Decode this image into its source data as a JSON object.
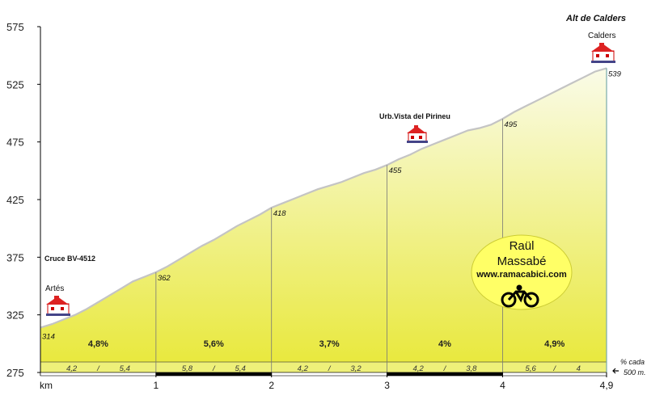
{
  "chart_data": {
    "type": "area",
    "title": "Alt de Calders",
    "x_unit_label": "km",
    "x_ticks": [
      {
        "value": 1,
        "label": "1"
      },
      {
        "value": 2,
        "label": "2"
      },
      {
        "value": 3,
        "label": "3"
      },
      {
        "value": 4,
        "label": "4"
      },
      {
        "value": 4.9,
        "label": "4,9"
      }
    ],
    "y_ticks": [
      275,
      325,
      375,
      425,
      475,
      525,
      575
    ],
    "ylim": [
      275,
      575
    ],
    "xlim": [
      0,
      4.9
    ],
    "points": [
      {
        "x": 0,
        "y": 314,
        "label": "314"
      },
      {
        "x": 1,
        "y": 362,
        "label": "362"
      },
      {
        "x": 2,
        "y": 418,
        "label": "418"
      },
      {
        "x": 3,
        "y": 455,
        "label": "455"
      },
      {
        "x": 4,
        "y": 495,
        "label": "495"
      },
      {
        "x": 4.9,
        "y": 539,
        "label": "539"
      }
    ],
    "profile": [
      [
        0,
        314
      ],
      [
        0.1,
        317
      ],
      [
        0.2,
        321
      ],
      [
        0.3,
        325
      ],
      [
        0.4,
        330
      ],
      [
        0.5,
        336
      ],
      [
        0.6,
        342
      ],
      [
        0.7,
        348
      ],
      [
        0.8,
        354
      ],
      [
        0.9,
        358
      ],
      [
        1,
        362
      ],
      [
        1.1,
        367
      ],
      [
        1.2,
        373
      ],
      [
        1.3,
        379
      ],
      [
        1.4,
        385
      ],
      [
        1.5,
        390
      ],
      [
        1.6,
        396
      ],
      [
        1.7,
        402
      ],
      [
        1.8,
        407
      ],
      [
        1.9,
        412
      ],
      [
        2,
        418
      ],
      [
        2.1,
        422
      ],
      [
        2.2,
        426
      ],
      [
        2.3,
        430
      ],
      [
        2.4,
        434
      ],
      [
        2.5,
        437
      ],
      [
        2.6,
        440
      ],
      [
        2.7,
        444
      ],
      [
        2.8,
        448
      ],
      [
        2.9,
        451
      ],
      [
        3,
        455
      ],
      [
        3.1,
        460
      ],
      [
        3.2,
        464
      ],
      [
        3.3,
        469
      ],
      [
        3.4,
        473
      ],
      [
        3.5,
        477
      ],
      [
        3.6,
        481
      ],
      [
        3.7,
        485
      ],
      [
        3.8,
        487
      ],
      [
        3.9,
        490
      ],
      [
        4,
        495
      ],
      [
        4.1,
        501
      ],
      [
        4.2,
        506
      ],
      [
        4.3,
        511
      ],
      [
        4.4,
        516
      ],
      [
        4.5,
        521
      ],
      [
        4.6,
        526
      ],
      [
        4.7,
        531
      ],
      [
        4.8,
        536
      ],
      [
        4.9,
        539
      ]
    ],
    "segment_gradients": [
      "4,8%",
      "5,6%",
      "3,7%",
      "4%",
      "4,9%"
    ],
    "sub_gradients": [
      [
        "4,2",
        "5,4"
      ],
      [
        "5,8",
        "5,4"
      ],
      [
        "4,2",
        "3,2"
      ],
      [
        "4,2",
        "3,8"
      ],
      [
        "5,6",
        "4"
      ]
    ],
    "sub_separator": "/",
    "sub_note_line1": "% cada",
    "sub_note_line2": "500 m.",
    "places": [
      {
        "name": "Artés",
        "x": 0
      },
      {
        "name": "Cruce BV-4512",
        "x": 0
      },
      {
        "name": "Urb.Vista del Pirineu",
        "x": 3.3
      },
      {
        "name": "Calders",
        "x": 4.9
      }
    ],
    "legend": "none",
    "grid": false
  },
  "badge": {
    "name_line1": "Raül",
    "name_line2": "Massabé",
    "site": "www.ramacabici.com",
    "icon": "bicycle-icon",
    "color": "#ffff66"
  },
  "colors": {
    "fill_top": "#f7f8d8",
    "fill_bottom": "#e6e63a",
    "profile_line": "#c8c8c8",
    "band": "#eef07a",
    "axis": "#000000"
  }
}
